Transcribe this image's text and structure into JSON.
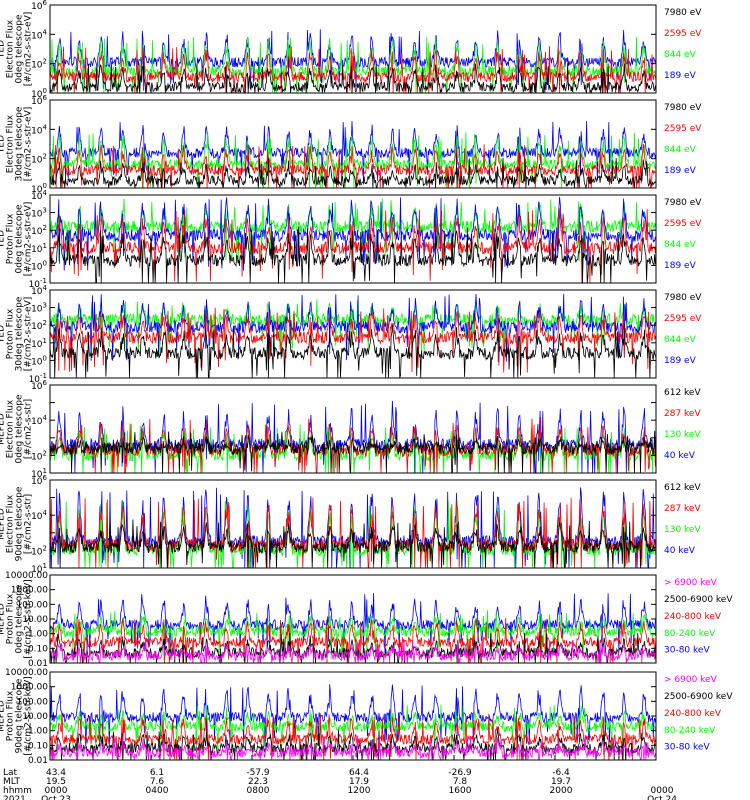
{
  "colors": {
    "blue": "#0000ff",
    "red": "#ff0000",
    "green": "#00ff00",
    "black": "#000000",
    "magenta": "#ff00ff"
  },
  "chart_data": [
    {
      "type": "line",
      "instrument": "TED",
      "ylabel": [
        "TED",
        "Electron Flux",
        "0deg telescope",
        "[#/cm2-s-str-eV]"
      ],
      "yscale": "log",
      "ylim_exp": [
        0,
        6
      ],
      "ytick_exp": [
        0,
        2,
        4,
        6
      ],
      "ytick_style": "exp",
      "legend": [
        {
          "text": "7980 eV",
          "color": "black"
        },
        {
          "text": "2595 eV",
          "color": "red"
        },
        {
          "text": "844 eV",
          "color": "green"
        },
        {
          "text": "189 eV",
          "color": "blue"
        }
      ],
      "series_levels": [
        {
          "name": "189 eV",
          "color": "blue",
          "base": 2.1,
          "spike": 3.8
        },
        {
          "name": "844 eV",
          "color": "green",
          "base": 1.5,
          "spike": 3.3
        },
        {
          "name": "2595 eV",
          "color": "red",
          "base": 1.1,
          "spike": 2.6
        },
        {
          "name": "7980 eV",
          "color": "black",
          "base": 0.4,
          "spike": 1.6
        }
      ]
    },
    {
      "type": "line",
      "instrument": "TED",
      "ylabel": [
        "TED",
        "Electron Flux",
        "30deg telescope",
        "[#/cm2-s-str-eV]"
      ],
      "yscale": "log",
      "ylim_exp": [
        0,
        6
      ],
      "ytick_exp": [
        0,
        2,
        4,
        6
      ],
      "ytick_style": "exp",
      "legend": [
        {
          "text": "7980 eV",
          "color": "black"
        },
        {
          "text": "2595 eV",
          "color": "red"
        },
        {
          "text": "844 eV",
          "color": "green"
        },
        {
          "text": "189 eV",
          "color": "blue"
        }
      ],
      "series_levels": [
        {
          "name": "189 eV",
          "color": "blue",
          "base": 2.4,
          "spike": 4.0
        },
        {
          "name": "844 eV",
          "color": "green",
          "base": 1.6,
          "spike": 3.2
        },
        {
          "name": "2595 eV",
          "color": "red",
          "base": 1.2,
          "spike": 2.5
        },
        {
          "name": "7980 eV",
          "color": "black",
          "base": 0.5,
          "spike": 1.5
        }
      ]
    },
    {
      "type": "line",
      "instrument": "TED",
      "ylabel": [
        "TED",
        "Proton Flux",
        "0deg telescope",
        "[#/cm2-s-str-eV]"
      ],
      "yscale": "log",
      "ylim_exp": [
        -1,
        4
      ],
      "ytick_exp": [
        -1,
        0,
        1,
        2,
        3,
        4
      ],
      "ytick_style": "exp",
      "legend": [
        {
          "text": "7980 eV",
          "color": "black"
        },
        {
          "text": "2595 eV",
          "color": "red"
        },
        {
          "text": "844 eV",
          "color": "green"
        },
        {
          "text": "189 eV",
          "color": "blue"
        }
      ],
      "series_levels": [
        {
          "name": "844 eV",
          "color": "green",
          "base": 2.2,
          "spike": 3.2
        },
        {
          "name": "189 eV",
          "color": "blue",
          "base": 1.7,
          "spike": 3.4
        },
        {
          "name": "2595 eV",
          "color": "red",
          "base": 1.0,
          "spike": 2.6
        },
        {
          "name": "7980 eV",
          "color": "black",
          "base": 0.3,
          "spike": 1.6
        }
      ]
    },
    {
      "type": "line",
      "instrument": "TED",
      "ylabel": [
        "TED",
        "Proton Flux",
        "30deg telescope",
        "[#/cm2-s-str-eV]"
      ],
      "yscale": "log",
      "ylim_exp": [
        -1,
        4
      ],
      "ytick_exp": [
        -1,
        0,
        1,
        2,
        3,
        4
      ],
      "ytick_style": "exp",
      "legend": [
        {
          "text": "7980 eV",
          "color": "black"
        },
        {
          "text": "2595 eV",
          "color": "red"
        },
        {
          "text": "844 eV",
          "color": "green"
        },
        {
          "text": "189 eV",
          "color": "blue"
        }
      ],
      "series_levels": [
        {
          "name": "844 eV",
          "color": "green",
          "base": 2.3,
          "spike": 3.0
        },
        {
          "name": "189 eV",
          "color": "blue",
          "base": 1.9,
          "spike": 3.2
        },
        {
          "name": "2595 eV",
          "color": "red",
          "base": 1.3,
          "spike": 2.4
        },
        {
          "name": "7980 eV",
          "color": "black",
          "base": 0.4,
          "spike": 1.5
        }
      ]
    },
    {
      "type": "line",
      "instrument": "MEPED",
      "ylabel": [
        "MEPED",
        "Electron Flux",
        "0deg telescope",
        "[#/cm2-s-str]"
      ],
      "yscale": "log",
      "ylim_exp": [
        1,
        6
      ],
      "ytick_exp": [
        1,
        2,
        3,
        4,
        5,
        6
      ],
      "ytick_style": "exp",
      "ytick_labels_exp": [
        1,
        2,
        4,
        6
      ],
      "legend": [
        {
          "text": "612 keV",
          "color": "black"
        },
        {
          "text": "287 keV",
          "color": "red"
        },
        {
          "text": "130 keV",
          "color": "green"
        },
        {
          "text": "40 keV",
          "color": "blue"
        }
      ],
      "series_levels": [
        {
          "name": "40 keV",
          "color": "blue",
          "base": 2.6,
          "spike": 4.4
        },
        {
          "name": "130 keV",
          "color": "green",
          "base": 2.05,
          "spike": 3.2
        },
        {
          "name": "287 keV",
          "color": "red",
          "base": 2.3,
          "spike": 3.6
        },
        {
          "name": "612 keV",
          "color": "black",
          "base": 2.4,
          "spike": 2.8
        }
      ]
    },
    {
      "type": "line",
      "instrument": "MEPED",
      "ylabel": [
        "MEPED",
        "Electron Flux",
        "90deg telescope",
        "[#/cm2-s-str]"
      ],
      "yscale": "log",
      "ylim_exp": [
        1,
        6
      ],
      "ytick_exp": [
        1,
        2,
        3,
        4,
        5,
        6
      ],
      "ytick_style": "exp",
      "ytick_labels_exp": [
        1,
        2,
        4,
        6
      ],
      "legend": [
        {
          "text": "612 keV",
          "color": "black"
        },
        {
          "text": "287 keV",
          "color": "red"
        },
        {
          "text": "130 keV",
          "color": "green"
        },
        {
          "text": "40 keV",
          "color": "blue"
        }
      ],
      "series_levels": [
        {
          "name": "40 keV",
          "color": "blue",
          "base": 2.5,
          "spike": 5.0
        },
        {
          "name": "130 keV",
          "color": "green",
          "base": 2.05,
          "spike": 4.3
        },
        {
          "name": "287 keV",
          "color": "red",
          "base": 2.3,
          "spike": 4.4
        },
        {
          "name": "612 keV",
          "color": "black",
          "base": 2.2,
          "spike": 3.2
        }
      ]
    },
    {
      "type": "line",
      "instrument": "MEPED",
      "ylabel": [
        "MEPED",
        "Proton Flux",
        "0deg telescope",
        "[#/cm2-s-str-keV]"
      ],
      "yscale": "log",
      "ylim_exp": [
        -2,
        4
      ],
      "ytick_exp": [
        -2,
        -1,
        0,
        1,
        2,
        3,
        4
      ],
      "ytick_style": "decimal",
      "ytick_labels": [
        "0.01",
        "0.10",
        "1.00",
        "10.00",
        "100.00",
        "1000.00",
        "10000.00"
      ],
      "legend": [
        {
          "text": "> 6900 keV",
          "color": "magenta"
        },
        {
          "text": "2500-6900 keV",
          "color": "black"
        },
        {
          "text": "240-800 keV",
          "color": "red"
        },
        {
          "text": "80-240 keV",
          "color": "green"
        },
        {
          "text": "30-80 keV",
          "color": "blue"
        }
      ],
      "series_levels": [
        {
          "name": "30-80 keV",
          "color": "blue",
          "base": 0.6,
          "spike": 2.2
        },
        {
          "name": "80-240 keV",
          "color": "green",
          "base": 0.15,
          "spike": 1.0
        },
        {
          "name": "240-800 keV",
          "color": "red",
          "base": -0.6,
          "spike": 0.6
        },
        {
          "name": "2500-6900 keV",
          "color": "black",
          "base": -1.3,
          "spike": -0.5
        },
        {
          "name": "> 6900 keV",
          "color": "magenta",
          "base": -1.5,
          "spike": -1.0
        }
      ]
    },
    {
      "type": "line",
      "instrument": "MEPED",
      "ylabel": [
        "MEPED",
        "Proton Flux",
        "90deg telescope",
        "[#/cm2-s-str-keV]"
      ],
      "yscale": "log",
      "ylim_exp": [
        -2,
        4
      ],
      "ytick_exp": [
        -2,
        -1,
        0,
        1,
        2,
        3,
        4
      ],
      "ytick_style": "decimal",
      "ytick_labels": [
        "0.01",
        "0.10",
        "1.00",
        "10.00",
        "100.00",
        "1000.00",
        "10000.00"
      ],
      "legend": [
        {
          "text": "> 6900 keV",
          "color": "magenta"
        },
        {
          "text": "2500-6900 keV",
          "color": "black"
        },
        {
          "text": "240-800 keV",
          "color": "red"
        },
        {
          "text": "80-240 keV",
          "color": "green"
        },
        {
          "text": "30-80 keV",
          "color": "blue"
        }
      ],
      "series_levels": [
        {
          "name": "30-80 keV",
          "color": "blue",
          "base": 0.9,
          "spike": 2.6
        },
        {
          "name": "80-240 keV",
          "color": "green",
          "base": 0.3,
          "spike": 1.2
        },
        {
          "name": "240-800 keV",
          "color": "red",
          "base": -0.6,
          "spike": 0.6
        },
        {
          "name": "2500-6900 keV",
          "color": "black",
          "base": -1.2,
          "spike": -0.4
        },
        {
          "name": "> 6900 keV",
          "color": "magenta",
          "base": -1.5,
          "spike": -0.9
        }
      ]
    }
  ],
  "xaxis": {
    "row_labels": [
      "Lat",
      "MLT",
      "hhmm",
      "2021"
    ],
    "ticks": [
      {
        "lat": "43.4",
        "mlt": "19.5",
        "hhmm": "0000",
        "date": "Oct 23"
      },
      {
        "lat": "6.1",
        "mlt": "7.6",
        "hhmm": "0400",
        "date": ""
      },
      {
        "lat": "-57.9",
        "mlt": "22.3",
        "hhmm": "0800",
        "date": ""
      },
      {
        "lat": "64.4",
        "mlt": "17.9",
        "hhmm": "1200",
        "date": ""
      },
      {
        "lat": "-26.9",
        "mlt": "7.8",
        "hhmm": "1600",
        "date": ""
      },
      {
        "lat": "-6.4",
        "mlt": "19.7",
        "hhmm": "2000",
        "date": ""
      },
      {
        "lat": "",
        "mlt": "",
        "hhmm": "0000",
        "date": "Oct 24"
      }
    ],
    "hours_range": [
      0,
      24
    ]
  }
}
